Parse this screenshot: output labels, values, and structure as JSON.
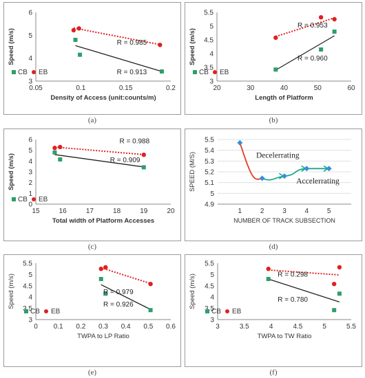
{
  "charts": [
    {
      "id": "a",
      "caption": "(a)",
      "type": "scatter",
      "xlabel": "Density of Access (unit:counts/m)",
      "ylabel": "Speed (m/s)",
      "xlim": [
        0.05,
        0.2
      ],
      "ylim": [
        3,
        6
      ],
      "xticks": [
        "0.05",
        "0.1",
        "0.15",
        "0.2"
      ],
      "yticks": [
        "3",
        "4",
        "5",
        "6"
      ],
      "legend": [
        "CB",
        "EB"
      ],
      "series": [
        {
          "name": "CB",
          "marker": "square",
          "color": "#2e9e6b",
          "x": [
            0.094,
            0.099,
            0.19
          ],
          "y": [
            4.8,
            4.15,
            3.42
          ],
          "trend": {
            "color": "#222222",
            "style": "solid",
            "x": [
              0.094,
              0.19
            ],
            "y": [
              4.55,
              3.42
            ],
            "label": "R = 0.913"
          }
        },
        {
          "name": "EB",
          "marker": "circle",
          "color": "#e02020",
          "x": [
            0.092,
            0.098,
            0.188
          ],
          "y": [
            5.22,
            5.3,
            4.58
          ],
          "trend": {
            "color": "#e02020",
            "style": "dotted",
            "x": [
              0.092,
              0.19
            ],
            "y": [
              5.32,
              4.58
            ],
            "label": "R = 0.985"
          }
        }
      ]
    },
    {
      "id": "b",
      "caption": "(b)",
      "type": "scatter",
      "xlabel": "Length of Platform",
      "ylabel": "Speed (m/s)",
      "xlim": [
        20,
        60
      ],
      "ylim": [
        3,
        5.5
      ],
      "xticks": [
        "20",
        "30",
        "40",
        "50",
        "60"
      ],
      "yticks": [
        "3",
        "3.5",
        "4",
        "4.5",
        "5",
        "5.5"
      ],
      "legend": [
        "CB",
        "EB"
      ],
      "series": [
        {
          "name": "CB",
          "marker": "square",
          "color": "#2e9e6b",
          "x": [
            37.5,
            51,
            55
          ],
          "y": [
            3.42,
            4.15,
            4.8
          ],
          "trend": {
            "color": "#222222",
            "style": "solid",
            "x": [
              37.5,
              55
            ],
            "y": [
              3.4,
              4.65
            ],
            "label": "R = 0.960"
          }
        },
        {
          "name": "EB",
          "marker": "circle",
          "color": "#e02020",
          "x": [
            37.5,
            51,
            55
          ],
          "y": [
            4.58,
            5.32,
            5.25
          ],
          "trend": {
            "color": "#e02020",
            "style": "dotted",
            "x": [
              37.5,
              55
            ],
            "y": [
              4.62,
              5.3
            ],
            "label": "R = 0.953"
          }
        }
      ]
    },
    {
      "id": "c",
      "caption": "(c)",
      "type": "scatter",
      "xlabel": "Total width of Platform Accesses",
      "ylabel": "Speed (m/s)",
      "xlim": [
        15,
        20
      ],
      "ylim": [
        0,
        6
      ],
      "xticks": [
        "15",
        "16",
        "17",
        "18",
        "19",
        "20"
      ],
      "yticks": [
        "0",
        "1",
        "2",
        "3",
        "4",
        "5",
        "6"
      ],
      "legend": [
        "CB",
        "EB"
      ],
      "series": [
        {
          "name": "CB",
          "marker": "square",
          "color": "#2e9e6b",
          "x": [
            15.7,
            15.9,
            19
          ],
          "y": [
            4.8,
            4.15,
            3.42
          ],
          "trend": {
            "color": "#222222",
            "style": "solid",
            "x": [
              15.7,
              19
            ],
            "y": [
              4.6,
              3.45
            ],
            "label": "R = 0.909"
          }
        },
        {
          "name": "EB",
          "marker": "circle",
          "color": "#e02020",
          "x": [
            15.7,
            15.9,
            19
          ],
          "y": [
            5.22,
            5.3,
            4.58
          ],
          "trend": {
            "color": "#e02020",
            "style": "dotted",
            "x": [
              15.7,
              19
            ],
            "y": [
              5.3,
              4.6
            ],
            "label": "R = 0.988"
          }
        }
      ]
    },
    {
      "id": "d",
      "caption": "(d)",
      "type": "line",
      "xlabel": "NUMBER OF TRACK SUBSECTION",
      "ylabel": "SPEED (M/S)",
      "xlim": [
        0,
        6
      ],
      "ylim": [
        4.9,
        5.5
      ],
      "xticks": [
        "1",
        "2",
        "3",
        "4",
        "5"
      ],
      "xtick_values": [
        1,
        2,
        3,
        4,
        5
      ],
      "yticks": [
        "4.9",
        "5",
        "5.1",
        "5.2",
        "5.3",
        "5.4",
        "5.5"
      ],
      "legend": [],
      "points": {
        "x": [
          1,
          2,
          3,
          4,
          5
        ],
        "y": [
          5.47,
          5.14,
          5.16,
          5.23,
          5.23
        ],
        "color": "#3a8fd8"
      },
      "annotations": [
        "Decelerrating",
        "Accelerrating"
      ]
    },
    {
      "id": "e",
      "caption": "(e)",
      "type": "scatter",
      "xlabel": "TWPA to LP Ratio",
      "ylabel": "Speed (m/s)",
      "xlim": [
        0,
        0.6
      ],
      "ylim": [
        3,
        5.5
      ],
      "xticks": [
        "0",
        "0.1",
        "0.2",
        "0.3",
        "0.4",
        "0.5",
        "0.6"
      ],
      "yticks": [
        "3",
        "3.5",
        "4",
        "4.5",
        "5",
        "5.5"
      ],
      "legend": [
        "CB",
        "EB"
      ],
      "series": [
        {
          "name": "CB",
          "marker": "square",
          "color": "#2e9e6b",
          "x": [
            0.29,
            0.31,
            0.51
          ],
          "y": [
            4.8,
            4.15,
            3.42
          ],
          "trend": {
            "color": "#222222",
            "style": "solid",
            "x": [
              0.29,
              0.51
            ],
            "y": [
              4.55,
              3.45
            ],
            "label": "R = 0.926"
          }
        },
        {
          "name": "EB",
          "marker": "circle",
          "color": "#e02020",
          "x": [
            0.29,
            0.31,
            0.51
          ],
          "y": [
            5.25,
            5.32,
            4.58
          ],
          "trend": {
            "color": "#e02020",
            "style": "dotted",
            "x": [
              0.29,
              0.51
            ],
            "y": [
              5.3,
              4.6
            ],
            "label": "R = 0.979"
          }
        }
      ]
    },
    {
      "id": "f",
      "caption": "(f)",
      "type": "scatter",
      "xlabel": "TWPA to TW Ratio",
      "ylabel": "Speed (m/s)",
      "xlim": [
        3,
        5.5
      ],
      "ylim": [
        3,
        5.5
      ],
      "xticks": [
        "3",
        "3.5",
        "4",
        "4.5",
        "5",
        "5.5"
      ],
      "yticks": [
        "3",
        "3.5",
        "4",
        "4.5",
        "5",
        "5.5"
      ],
      "legend": [
        "CB",
        "EB"
      ],
      "series": [
        {
          "name": "CB",
          "marker": "square",
          "color": "#2e9e6b",
          "x": [
            3.95,
            5.18,
            5.28
          ],
          "y": [
            4.8,
            3.42,
            4.15
          ],
          "trend": {
            "color": "#222222",
            "style": "solid",
            "x": [
              3.95,
              5.28
            ],
            "y": [
              4.8,
              3.78
            ],
            "label": "R = 0.780"
          }
        },
        {
          "name": "EB",
          "marker": "circle",
          "color": "#e02020",
          "x": [
            3.95,
            5.18,
            5.28
          ],
          "y": [
            5.25,
            4.58,
            5.32
          ],
          "trend": {
            "color": "#e02020",
            "style": "dotted",
            "x": [
              3.95,
              5.28
            ],
            "y": [
              5.2,
              4.98
            ],
            "label": "R = 0.298"
          }
        }
      ]
    }
  ]
}
